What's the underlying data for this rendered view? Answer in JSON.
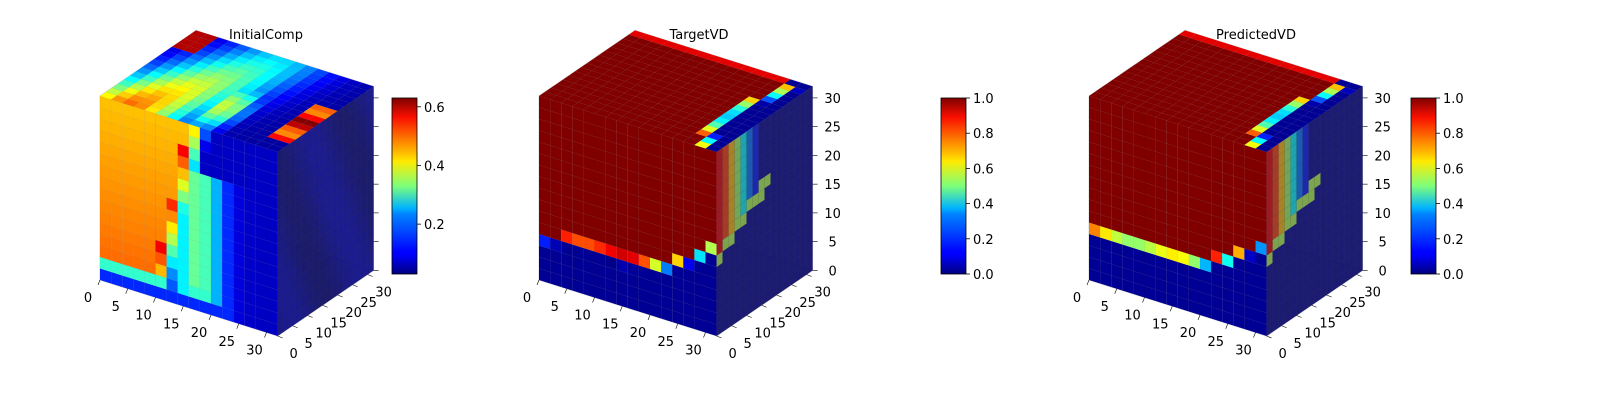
{
  "figure": {
    "description_colormap": "jet",
    "background": "#ffffff",
    "pane_color": "#f2f2f2",
    "grid_color": "#d9d9d9"
  },
  "chart_data": [
    {
      "type": "heatmap",
      "title": "InitialComp",
      "x_ticks": [
        "0",
        "5",
        "10",
        "15",
        "20",
        "25",
        "30"
      ],
      "y_ticks": [
        "0",
        "5",
        "10",
        "15",
        "20",
        "25",
        "30"
      ],
      "z_ticks": [],
      "xlim": [
        0,
        32
      ],
      "ylim": [
        0,
        32
      ],
      "zlim": [
        0,
        32
      ],
      "colorbar": {
        "min": 0.03,
        "max": 0.63,
        "ticks": [
          "0.2",
          "0.4",
          "0.6"
        ],
        "tick_values": [
          0.2,
          0.4,
          0.6
        ]
      }
    },
    {
      "type": "heatmap",
      "title": "TargetVD",
      "x_ticks": [
        "0",
        "5",
        "10",
        "15",
        "20",
        "25",
        "30"
      ],
      "y_ticks": [
        "0",
        "5",
        "10",
        "15",
        "20",
        "25",
        "30"
      ],
      "z_ticks": [
        "0",
        "5",
        "10",
        "15",
        "20",
        "25",
        "30"
      ],
      "xlim": [
        0,
        32
      ],
      "ylim": [
        0,
        32
      ],
      "zlim": [
        0,
        32
      ],
      "colorbar": {
        "min": 0.0,
        "max": 1.0,
        "ticks": [
          "0.0",
          "0.2",
          "0.4",
          "0.6",
          "0.8",
          "1.0"
        ],
        "tick_values": [
          0.0,
          0.2,
          0.4,
          0.6,
          0.8,
          1.0
        ]
      }
    },
    {
      "type": "heatmap",
      "title": "PredictedVD",
      "x_ticks": [
        "0",
        "5",
        "10",
        "15",
        "20",
        "25",
        "30"
      ],
      "y_ticks": [
        "0",
        "5",
        "10",
        "15",
        "20",
        "25",
        "30"
      ],
      "z_ticks": [
        "0",
        "5",
        "10",
        "15",
        "20",
        "25",
        "30"
      ],
      "xlim": [
        0,
        32
      ],
      "ylim": [
        0,
        32
      ],
      "zlim": [
        0,
        32
      ],
      "colorbar": {
        "min": 0.0,
        "max": 1.0,
        "ticks": [
          "0.0",
          "0.2",
          "0.4",
          "0.6",
          "0.8",
          "1.0"
        ],
        "tick_values": [
          0.0,
          0.2,
          0.4,
          0.6,
          0.8,
          1.0
        ]
      }
    }
  ]
}
